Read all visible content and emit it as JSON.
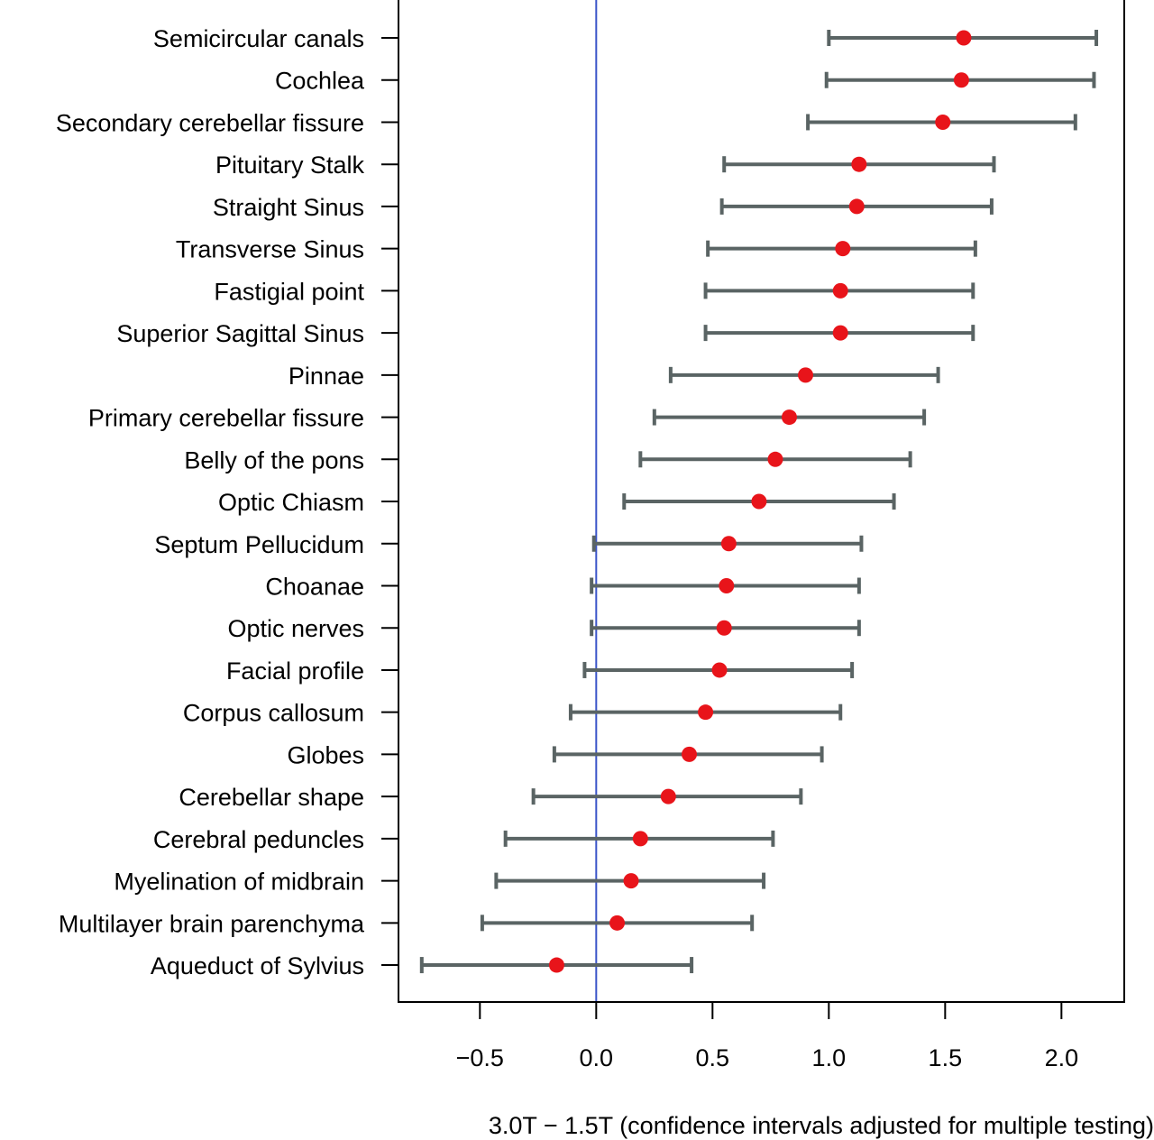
{
  "chart_data": {
    "type": "forest",
    "title": "",
    "xlabel": "3.0T − 1.5T (confidence intervals adjusted for multiple testing)",
    "ylabel": "",
    "xlim": [
      -0.85,
      2.27
    ],
    "xticks": [
      -0.5,
      0.0,
      0.5,
      1.0,
      1.5,
      2.0
    ],
    "xtick_labels": [
      "−0.5",
      "0.0",
      "0.5",
      "1.0",
      "1.5",
      "2.0"
    ],
    "reference_line": {
      "x": 0.0,
      "color": "#3b55c9"
    },
    "grid": false,
    "legend": "none",
    "colors": {
      "point": "#e8141a",
      "interval": "#5a6464",
      "axis": "#000000"
    },
    "rows": [
      {
        "label": "Semicircular canals",
        "estimate": 1.58,
        "lower": 1.0,
        "upper": 2.15
      },
      {
        "label": "Cochlea",
        "estimate": 1.57,
        "lower": 0.99,
        "upper": 2.14
      },
      {
        "label": "Secondary cerebellar fissure",
        "estimate": 1.49,
        "lower": 0.91,
        "upper": 2.06
      },
      {
        "label": "Pituitary Stalk",
        "estimate": 1.13,
        "lower": 0.55,
        "upper": 1.71
      },
      {
        "label": "Straight Sinus",
        "estimate": 1.12,
        "lower": 0.54,
        "upper": 1.7
      },
      {
        "label": "Transverse Sinus",
        "estimate": 1.06,
        "lower": 0.48,
        "upper": 1.63
      },
      {
        "label": "Fastigial point",
        "estimate": 1.05,
        "lower": 0.47,
        "upper": 1.62
      },
      {
        "label": "Superior Sagittal Sinus",
        "estimate": 1.05,
        "lower": 0.47,
        "upper": 1.62
      },
      {
        "label": "Pinnae",
        "estimate": 0.9,
        "lower": 0.32,
        "upper": 1.47
      },
      {
        "label": "Primary cerebellar fissure",
        "estimate": 0.83,
        "lower": 0.25,
        "upper": 1.41
      },
      {
        "label": "Belly of the pons",
        "estimate": 0.77,
        "lower": 0.19,
        "upper": 1.35
      },
      {
        "label": "Optic Chiasm",
        "estimate": 0.7,
        "lower": 0.12,
        "upper": 1.28
      },
      {
        "label": "Septum Pellucidum",
        "estimate": 0.57,
        "lower": -0.01,
        "upper": 1.14
      },
      {
        "label": "Choanae",
        "estimate": 0.56,
        "lower": -0.02,
        "upper": 1.13
      },
      {
        "label": "Optic nerves",
        "estimate": 0.55,
        "lower": -0.02,
        "upper": 1.13
      },
      {
        "label": "Facial profile",
        "estimate": 0.53,
        "lower": -0.05,
        "upper": 1.1
      },
      {
        "label": "Corpus callosum",
        "estimate": 0.47,
        "lower": -0.11,
        "upper": 1.05
      },
      {
        "label": "Globes",
        "estimate": 0.4,
        "lower": -0.18,
        "upper": 0.97
      },
      {
        "label": "Cerebellar shape",
        "estimate": 0.31,
        "lower": -0.27,
        "upper": 0.88
      },
      {
        "label": "Cerebral peduncles",
        "estimate": 0.19,
        "lower": -0.39,
        "upper": 0.76
      },
      {
        "label": "Myelination of midbrain",
        "estimate": 0.15,
        "lower": -0.43,
        "upper": 0.72
      },
      {
        "label": "Multilayer brain parenchyma",
        "estimate": 0.09,
        "lower": -0.49,
        "upper": 0.67
      },
      {
        "label": "Aqueduct of Sylvius",
        "estimate": -0.17,
        "lower": -0.75,
        "upper": 0.41
      }
    ]
  }
}
